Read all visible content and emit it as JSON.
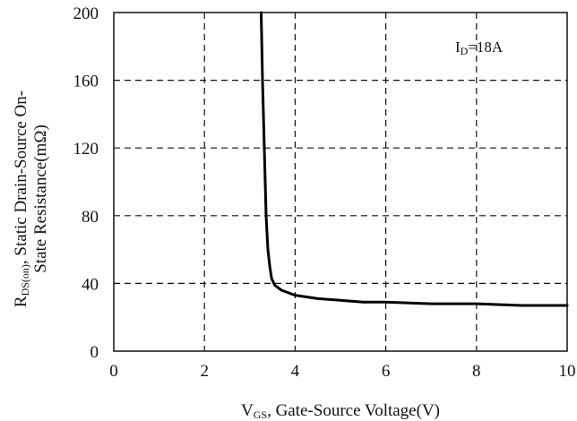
{
  "chart_data": {
    "type": "line",
    "title": "",
    "xlabel": {
      "main": "V",
      "sub": "GS",
      "rest": ", Gate-Source Voltage(V)"
    },
    "ylabel": {
      "line1_main": "R",
      "line1_sub": "DS(on)",
      "line1_rest": ", Static Drain-Source On-",
      "line2": "State Resistance(mΩ)"
    },
    "annotation": {
      "main": "I",
      "sub": "D",
      "rest": "=18A"
    },
    "xlim": [
      0,
      10
    ],
    "ylim": [
      0,
      200
    ],
    "xticks": [
      0,
      2,
      4,
      6,
      8,
      10
    ],
    "yticks": [
      0,
      40,
      80,
      120,
      160,
      200
    ],
    "grid": true,
    "series": [
      {
        "name": "",
        "x": [
          3.25,
          3.28,
          3.32,
          3.36,
          3.4,
          3.44,
          3.48,
          3.55,
          3.7,
          4.0,
          4.5,
          5.0,
          5.5,
          6.0,
          7.0,
          8.0,
          9.0,
          10.0
        ],
        "y": [
          200,
          160,
          120,
          80,
          60,
          50,
          43,
          39,
          36,
          33,
          31,
          30,
          29,
          29,
          28,
          28,
          27,
          27
        ]
      }
    ]
  }
}
